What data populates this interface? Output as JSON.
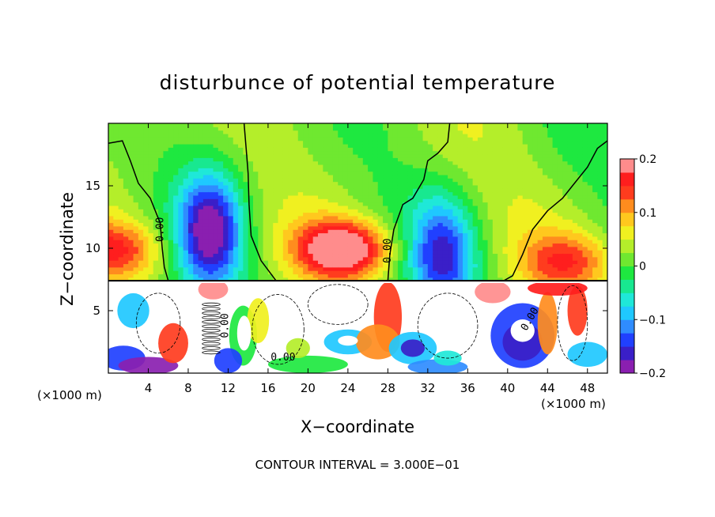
{
  "chart_data": {
    "type": "heatmap",
    "title": "disturbunce of potential temperature",
    "xlabel": "X−coordinate",
    "ylabel": "Z−coordinate",
    "x_unit_left": "(×1000 m)",
    "x_unit_right": "(×1000 m)",
    "footer": "CONTOUR INTERVAL = 3.000E−01",
    "xlim": [
      0,
      50
    ],
    "ylim": [
      0,
      20
    ],
    "x_ticks": [
      4,
      8,
      12,
      16,
      20,
      24,
      28,
      32,
      36,
      40,
      44,
      48
    ],
    "x_tick_labels": [
      "4",
      "8",
      "12",
      "16",
      "20",
      "24",
      "28",
      "32",
      "36",
      "40",
      "44",
      "48"
    ],
    "y_ticks": [
      5,
      10,
      15
    ],
    "y_tick_labels": [
      "5",
      "10",
      "15"
    ],
    "colorbar": {
      "range": [
        -0.2,
        0.2
      ],
      "ticks": [
        0.2,
        0.1,
        0,
        -0.1,
        -0.2
      ],
      "tick_labels": [
        "0.2",
        "0.1",
        "0",
        "−0.1",
        "−0.2"
      ],
      "colors": [
        "#8a1fb0",
        "#3a1fc8",
        "#2040ff",
        "#2f8cff",
        "#1fc8ff",
        "#1fe8d8",
        "#18e890",
        "#1ee840",
        "#6fe830",
        "#b4ee2a",
        "#f0f020",
        "#ffc81e",
        "#ff8c1e",
        "#ff3c1e",
        "#ff1e1e",
        "#ff8c8c"
      ]
    },
    "contour_labels": [
      "0.00",
      "0.00",
      "0.00",
      "0.00",
      "0.00"
    ],
    "interface_z": 7.4,
    "upper_features": [
      {
        "kind": "cold",
        "x": 10.2,
        "z": 11.5,
        "amp": -0.2
      },
      {
        "kind": "warm",
        "x": 23.5,
        "z": 10.0,
        "amp": 0.2
      },
      {
        "kind": "cold",
        "x": 33.5,
        "z": 9.5,
        "amp": -0.15
      },
      {
        "kind": "warm",
        "x": 0.8,
        "z": 10.0,
        "amp": 0.12
      },
      {
        "kind": "warm",
        "x": 46.0,
        "z": 9.0,
        "amp": 0.1
      }
    ]
  }
}
